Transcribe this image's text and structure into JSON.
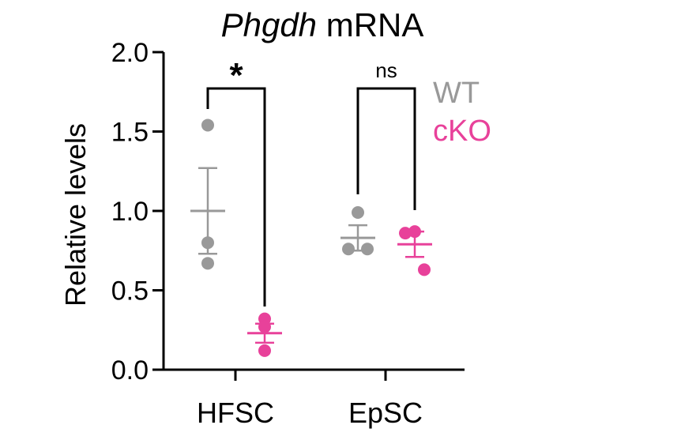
{
  "chart_data": {
    "type": "scatter",
    "title": {
      "gene": "Phgdh",
      "suffix": " mRNA"
    },
    "ylabel": "Relative levels",
    "xlabel": "",
    "ylim": [
      0,
      2.0
    ],
    "yticks": [
      0.0,
      0.5,
      1.0,
      1.5,
      2.0
    ],
    "ytick_labels": [
      "0.0",
      "0.5",
      "1.0",
      "1.5",
      "2.0"
    ],
    "categories": [
      "HFSC",
      "EpSC"
    ],
    "series": [
      {
        "name": "WT",
        "color": "#999999",
        "points": {
          "HFSC": [
            1.54,
            0.8,
            0.67
          ],
          "EpSC": [
            0.99,
            0.76,
            0.76
          ]
        },
        "mean": {
          "HFSC": 1.0,
          "EpSC": 0.83
        },
        "sem": {
          "HFSC": 0.27,
          "EpSC": 0.08
        }
      },
      {
        "name": "cKO",
        "color": "#e8419a",
        "points": {
          "HFSC": [
            0.32,
            0.27,
            0.12
          ],
          "EpSC": [
            0.87,
            0.86,
            0.63
          ]
        },
        "mean": {
          "HFSC": 0.23,
          "EpSC": 0.79
        },
        "sem": {
          "HFSC": 0.06,
          "EpSC": 0.08
        }
      }
    ],
    "significance": [
      {
        "category": "HFSC",
        "label": "*"
      },
      {
        "category": "EpSC",
        "label": "ns"
      }
    ],
    "legend": {
      "placement": "top-right",
      "entries": [
        "WT",
        "cKO"
      ]
    }
  }
}
